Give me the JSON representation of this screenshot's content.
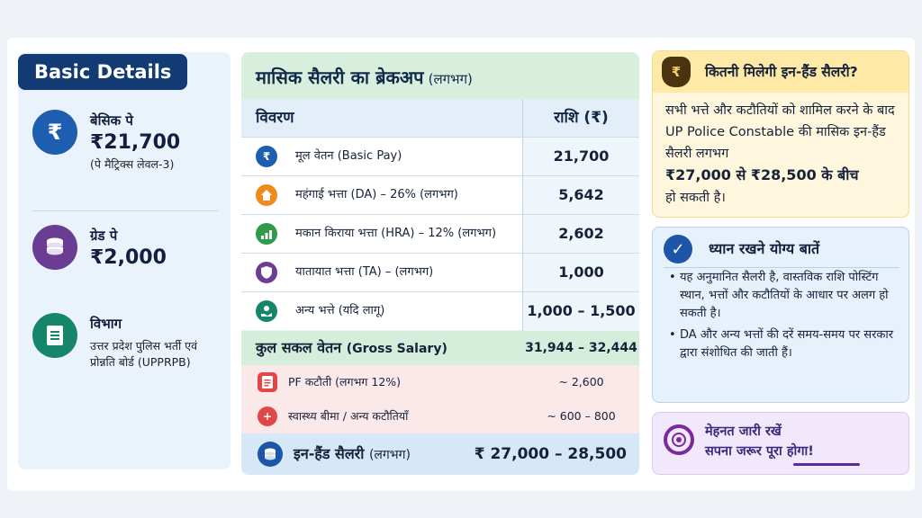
{
  "left": {
    "title": "Basic Details",
    "items": [
      {
        "icon": "rupee-icon",
        "glyph": "₹",
        "color": "#1e5eb0",
        "label": "बेसिक पे",
        "value": "₹21,700",
        "sub": "(पे मैट्रिक्स लेवल-3)"
      },
      {
        "icon": "coins-icon",
        "glyph": "◎",
        "color": "#6a3c93",
        "label": "ग्रेड पे",
        "value": "₹2,000",
        "sub": ""
      },
      {
        "icon": "document-icon",
        "glyph": "≡",
        "color": "#16866a",
        "label": "विभाग",
        "value": "",
        "sub": "उत्तर प्रदेश पुलिस भर्ती एवं प्रोन्नति बोर्ड (UPPRPB)"
      }
    ]
  },
  "breakup": {
    "title": "मासिक सैलरी का ब्रेकअप",
    "title_note": "(लगभग)",
    "col_label": "विवरण",
    "col_amount": "राशि (₹)",
    "rows": [
      {
        "icon": "rupee-icon",
        "glyph": "₹",
        "color": "#1e5eb0",
        "label": "मूल वेतन (Basic Pay)",
        "amount": "21,700"
      },
      {
        "icon": "home-icon",
        "glyph": "⌂",
        "color": "#f08a1c",
        "label": "महंगाई भत्ता (DA) – 26% (लगभग)",
        "amount": "5,642"
      },
      {
        "icon": "chart-icon",
        "glyph": "▲",
        "color": "#2e9a4a",
        "label": "मकान किराया भत्ता (HRA) – 12% (लगभग)",
        "amount": "2,602"
      },
      {
        "icon": "shield-icon",
        "glyph": "◆",
        "color": "#6a3c93",
        "label": "यातायात भत्ता (TA) – (लगभग)",
        "amount": "1,000"
      },
      {
        "icon": "hand-coin-icon",
        "glyph": "+",
        "color": "#16866a",
        "label": "अन्य भत्ते (यदि लागू)",
        "amount": "1,000 – 1,500"
      }
    ],
    "gross_label": "कुल सकल वेतन",
    "gross_note": "(Gross Salary)",
    "gross_amount": "31,944 – 32,444",
    "deductions": [
      {
        "icon": "pf-document-icon",
        "glyph": "≡",
        "color": "#e04848",
        "label": "PF कटौती (लगभग 12%)",
        "amount": "~ 2,600"
      },
      {
        "icon": "medical-plus-icon",
        "glyph": "+",
        "color": "#e04848",
        "label": "स्वास्थ्य बीमा / अन्य कटौतियाँ",
        "amount": "~ 600 – 800"
      }
    ],
    "inhand_label": "इन-हैंड सैलरी",
    "inhand_note": "(लगभग)",
    "inhand_amount": "₹ 27,000 – 28,500"
  },
  "inhand_card": {
    "title": "कितनी मिलेगी इन-हैंड सैलरी?",
    "body_1": "सभी भत्ते और कटौतियों को शामिल करने के बाद UP Police Constable की मासिक इन-हैंड सैलरी लगभग",
    "highlight": "₹27,000 से ₹28,500 के बीच",
    "body_2": "हो सकती है।"
  },
  "notes_card": {
    "title": "ध्यान रखने योग्य बातें",
    "bullets": [
      "यह अनुमानित सैलरी है, वास्तविक राशि पोस्टिंग स्थान, भत्तों और कटौतियों के आधार पर अलग हो सकती है।",
      "DA और अन्य भत्तों की दरें समय-समय पर सरकार द्वारा संशोधित की जाती हैं।"
    ]
  },
  "motivation": {
    "line_1": "मेहनत जारी रखें",
    "line_2": "सपना जरूर पूरा होगा!"
  },
  "colors": {
    "navy": "#123a73",
    "green_header": "#d8efdd",
    "deduction_bg": "#fbe8e8",
    "yellow_card": "#fff7dd"
  }
}
